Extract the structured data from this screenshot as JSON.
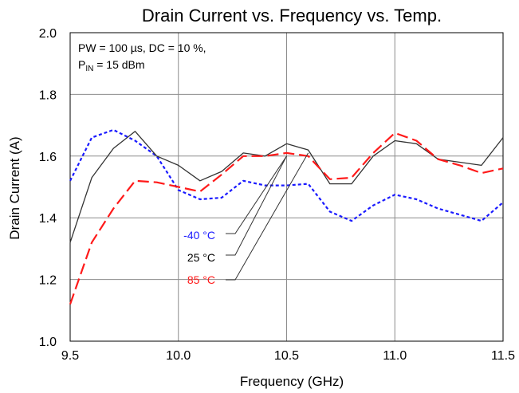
{
  "chart_data": {
    "type": "line",
    "title": "Drain Current vs. Frequency vs. Temp.",
    "xlabel": "Frequency (GHz)",
    "ylabel": "Drain Current (A)",
    "xlim": [
      9.5,
      11.5
    ],
    "ylim": [
      1.0,
      2.0
    ],
    "x_ticks": [
      "9.5",
      "10.0",
      "10.5",
      "11.0",
      "11.5"
    ],
    "y_ticks": [
      "1.0",
      "1.2",
      "1.4",
      "1.6",
      "1.8",
      "2.0"
    ],
    "grid": true,
    "annotation": {
      "line1": "PW = 100 µs, DC = 10 %,",
      "line2_prefix": "P",
      "line2_sub": "IN",
      "line2_suffix": " = 15 dBm"
    },
    "series": [
      {
        "name": "-40 °C",
        "color": "#1a1aff",
        "dash": "dotted",
        "x": [
          9.5,
          9.6,
          9.7,
          9.8,
          9.9,
          10.0,
          10.1,
          10.2,
          10.3,
          10.4,
          10.5,
          10.6,
          10.7,
          10.8,
          10.9,
          11.0,
          11.1,
          11.2,
          11.3,
          11.4,
          11.5
        ],
        "y": [
          1.52,
          1.66,
          1.685,
          1.65,
          1.6,
          1.49,
          1.46,
          1.465,
          1.52,
          1.505,
          1.505,
          1.51,
          1.42,
          1.39,
          1.44,
          1.475,
          1.46,
          1.43,
          1.41,
          1.39,
          1.45
        ]
      },
      {
        "name": "25 °C",
        "color": "#333333",
        "dash": "solid",
        "x": [
          9.5,
          9.6,
          9.7,
          9.8,
          9.9,
          10.0,
          10.1,
          10.2,
          10.3,
          10.4,
          10.5,
          10.6,
          10.7,
          10.8,
          10.9,
          11.0,
          11.1,
          11.2,
          11.3,
          11.4,
          11.5
        ],
        "y": [
          1.32,
          1.53,
          1.625,
          1.68,
          1.6,
          1.57,
          1.52,
          1.55,
          1.61,
          1.6,
          1.64,
          1.62,
          1.51,
          1.51,
          1.6,
          1.65,
          1.64,
          1.59,
          1.58,
          1.57,
          1.66
        ]
      },
      {
        "name": "85 °C",
        "color": "#ff1a1a",
        "dash": "dashed",
        "x": [
          9.5,
          9.6,
          9.7,
          9.8,
          9.9,
          10.0,
          10.1,
          10.2,
          10.3,
          10.4,
          10.5,
          10.6,
          10.7,
          10.8,
          10.9,
          11.0,
          11.1,
          11.2,
          11.3,
          11.4,
          11.5
        ],
        "y": [
          1.12,
          1.32,
          1.43,
          1.52,
          1.515,
          1.5,
          1.485,
          1.54,
          1.6,
          1.6,
          1.61,
          1.6,
          1.525,
          1.53,
          1.61,
          1.675,
          1.65,
          1.59,
          1.57,
          1.545,
          1.56
        ]
      }
    ],
    "legend": {
      "placement": "inside-left, with leader lines to curves",
      "entries": [
        {
          "label": "-40 °C",
          "color": "#1a1aff"
        },
        {
          "label": "25 °C",
          "color": "#000000"
        },
        {
          "label": "85 °C",
          "color": "#ff1a1a"
        }
      ]
    }
  }
}
